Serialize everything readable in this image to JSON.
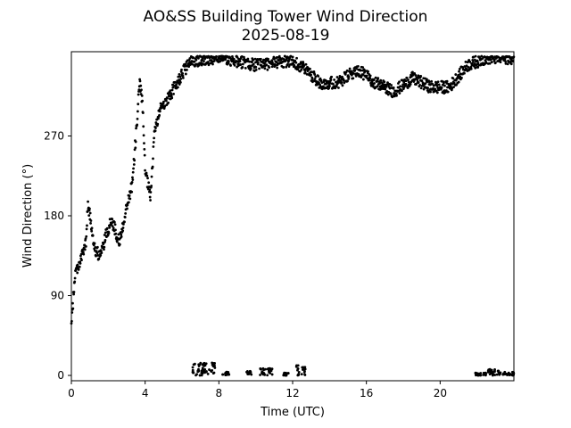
{
  "chart_data": {
    "type": "scatter",
    "title": "AO&SS Building Tower Wind Direction",
    "subtitle": "2025-08-19",
    "xlabel": "Time (UTC)",
    "ylabel": "Wind Direction (°)",
    "xlim": [
      0,
      24
    ],
    "ylim": [
      -6,
      365
    ],
    "xticks": [
      0,
      4,
      8,
      12,
      16,
      20
    ],
    "yticks": [
      0,
      90,
      180,
      270
    ],
    "grid": false,
    "marker_color": "#000000",
    "anchors": [
      [
        0.0,
        55
      ],
      [
        0.1,
        85
      ],
      [
        0.2,
        115
      ],
      [
        0.5,
        130
      ],
      [
        0.8,
        150
      ],
      [
        0.9,
        195
      ],
      [
        1.0,
        180
      ],
      [
        1.3,
        140
      ],
      [
        1.6,
        135
      ],
      [
        1.9,
        160
      ],
      [
        2.2,
        175
      ],
      [
        2.6,
        150
      ],
      [
        3.0,
        190
      ],
      [
        3.3,
        215
      ],
      [
        3.5,
        270
      ],
      [
        3.7,
        330
      ],
      [
        3.85,
        310
      ],
      [
        4.0,
        230
      ],
      [
        4.3,
        200
      ],
      [
        4.5,
        275
      ],
      [
        4.9,
        305
      ],
      [
        5.2,
        310
      ],
      [
        5.6,
        325
      ],
      [
        6.0,
        340
      ],
      [
        6.5,
        355
      ],
      [
        8.0,
        358
      ],
      [
        10.0,
        350
      ],
      [
        12.0,
        355
      ],
      [
        12.7,
        345
      ],
      [
        13.5,
        330
      ],
      [
        14.5,
        330
      ],
      [
        15.5,
        345
      ],
      [
        16.5,
        330
      ],
      [
        17.5,
        320
      ],
      [
        18.5,
        335
      ],
      [
        19.5,
        325
      ],
      [
        20.5,
        325
      ],
      [
        21.5,
        350
      ],
      [
        22.5,
        358
      ],
      [
        24.0,
        358
      ]
    ],
    "clusters": [
      {
        "x": [
          6.5,
          7.8
        ],
        "y": [
          0,
          15
        ]
      },
      {
        "x": [
          8.2,
          8.6
        ],
        "y": [
          0,
          4
        ]
      },
      {
        "x": [
          9.5,
          9.8
        ],
        "y": [
          0,
          5
        ]
      },
      {
        "x": [
          10.2,
          10.9
        ],
        "y": [
          0,
          8
        ]
      },
      {
        "x": [
          11.5,
          11.8
        ],
        "y": [
          0,
          3
        ]
      },
      {
        "x": [
          12.2,
          12.7
        ],
        "y": [
          0,
          12
        ]
      },
      {
        "x": [
          21.9,
          22.5
        ],
        "y": [
          0,
          3
        ]
      },
      {
        "x": [
          22.6,
          23.3
        ],
        "y": [
          0,
          7
        ]
      },
      {
        "x": [
          23.4,
          24.0
        ],
        "y": [
          0,
          4
        ]
      }
    ]
  }
}
